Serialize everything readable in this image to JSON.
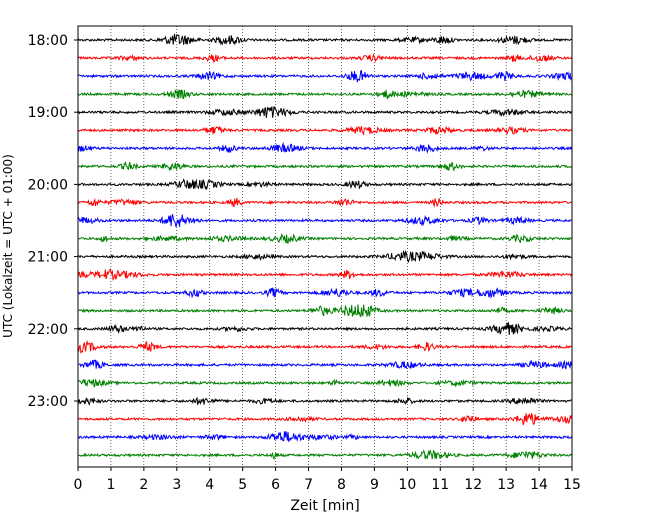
{
  "chart_data": {
    "type": "line",
    "subtype": "helicorder",
    "xlabel": "Zeit  [min]",
    "ylabel": "UTC (Lokalzeit = UTC + 01:00)",
    "xlim": [
      0,
      15
    ],
    "x_ticks": [
      "0",
      "1",
      "2",
      "3",
      "4",
      "5",
      "6",
      "7",
      "8",
      "9",
      "10",
      "11",
      "12",
      "13",
      "14",
      "15"
    ],
    "y_ticks": [
      "18:00",
      "19:00",
      "20:00",
      "21:00",
      "22:00",
      "23:00"
    ],
    "trace_start_times": [
      "18:00",
      "18:15",
      "18:30",
      "18:45",
      "19:00",
      "19:15",
      "19:30",
      "19:45",
      "20:00",
      "20:15",
      "20:30",
      "20:45",
      "21:00",
      "21:15",
      "21:30",
      "21:45",
      "22:00",
      "22:15",
      "22:30",
      "22:45",
      "23:00",
      "23:15",
      "23:30",
      "23:45"
    ],
    "trace_colors": [
      "#000000",
      "#ff0000",
      "#0000ff",
      "#008000"
    ],
    "vertical_grid": "dotted",
    "legend": "none"
  }
}
